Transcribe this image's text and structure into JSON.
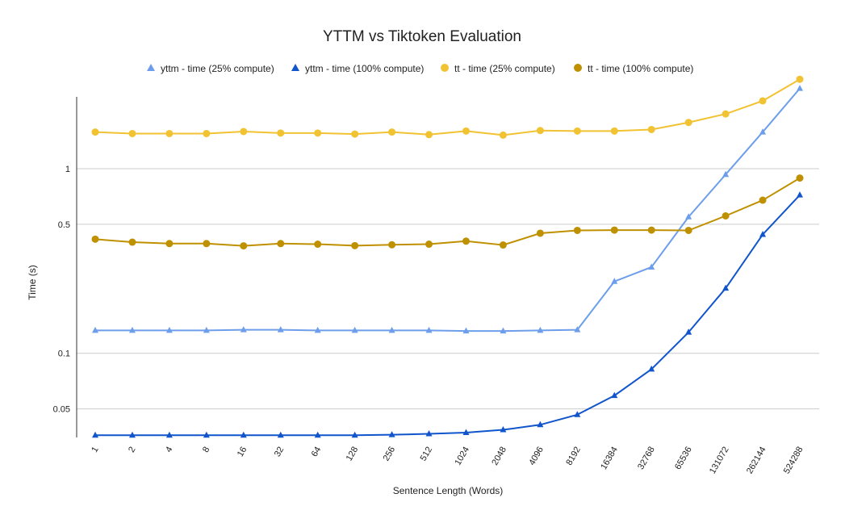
{
  "chart_data": {
    "type": "line",
    "title": "YTTM vs Tiktoken Evaluation",
    "xlabel": "Sentence Length (Words)",
    "ylabel": "Time (s)",
    "y_scale": "log",
    "ylim": [
      0.035,
      2.45
    ],
    "yticks": [
      {
        "value": 0.05,
        "label": "0.05"
      },
      {
        "value": 0.1,
        "label": "0.1"
      },
      {
        "value": 0.5,
        "label": "0.5"
      },
      {
        "value": 1,
        "label": "1"
      }
    ],
    "grid": true,
    "legend_position": "top",
    "categories": [
      "1",
      "2",
      "4",
      "8",
      "16",
      "32",
      "64",
      "128",
      "256",
      "512",
      "1024",
      "2048",
      "4096",
      "8192",
      "16384",
      "32768",
      "65536",
      "131072",
      "262144",
      "524288"
    ],
    "series": [
      {
        "name": "yttm - time (25% compute)",
        "color": "#6d9eeb",
        "marker": "triangle",
        "values": [
          0.133,
          0.133,
          0.133,
          0.133,
          0.134,
          0.134,
          0.133,
          0.133,
          0.133,
          0.133,
          0.132,
          0.132,
          0.133,
          0.134,
          0.245,
          0.293,
          0.548,
          0.93,
          1.58,
          2.72
        ]
      },
      {
        "name": "yttm - time (100% compute)",
        "color": "#1155cc",
        "marker": "triangle",
        "values": [
          0.036,
          0.036,
          0.036,
          0.036,
          0.036,
          0.036,
          0.036,
          0.036,
          0.0362,
          0.0366,
          0.0372,
          0.0385,
          0.041,
          0.0465,
          0.059,
          0.082,
          0.13,
          0.225,
          0.44,
          0.72
        ]
      },
      {
        "name": "tt - time (25% compute)",
        "color": "#f1c232",
        "marker": "circle",
        "values": [
          1.58,
          1.55,
          1.55,
          1.55,
          1.59,
          1.56,
          1.56,
          1.54,
          1.58,
          1.53,
          1.6,
          1.52,
          1.61,
          1.6,
          1.6,
          1.63,
          1.78,
          1.98,
          2.33,
          3.05
        ]
      },
      {
        "name": "tt - time (100% compute)",
        "color": "#bf9000",
        "marker": "circle",
        "values": [
          0.415,
          0.4,
          0.393,
          0.393,
          0.382,
          0.393,
          0.39,
          0.383,
          0.387,
          0.39,
          0.405,
          0.386,
          0.447,
          0.463,
          0.465,
          0.465,
          0.463,
          0.555,
          0.675,
          0.89
        ]
      }
    ]
  }
}
